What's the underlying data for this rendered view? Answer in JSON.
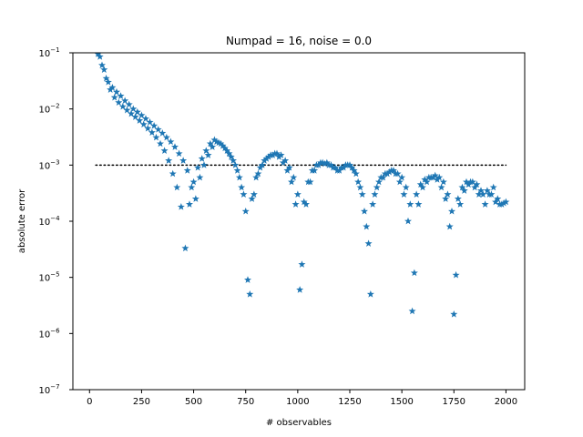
{
  "chart_data": {
    "type": "scatter",
    "title": "Numpad = 16, noise = 0.0",
    "xlabel": "# observables",
    "ylabel": "absolute error",
    "xlim": [
      -80,
      2090
    ],
    "ylim": [
      1e-07,
      0.1
    ],
    "yscale": "log",
    "grid": false,
    "x_ticks": [
      0,
      250,
      500,
      750,
      1000,
      1250,
      1500,
      1750,
      2000
    ],
    "x_tick_labels": [
      "0",
      "250",
      "500",
      "750",
      "1000",
      "1250",
      "1500",
      "1750",
      "2000"
    ],
    "y_ticks": [
      1e-07,
      1e-06,
      1e-05,
      0.0001,
      0.001,
      0.01,
      0.1
    ],
    "y_tick_labels": [
      [
        "10",
        "−7"
      ],
      [
        "10",
        "−6"
      ],
      [
        "10",
        "−5"
      ],
      [
        "10",
        "−4"
      ],
      [
        "10",
        "−3"
      ],
      [
        "10",
        "−2"
      ],
      [
        "10",
        "−1"
      ]
    ],
    "marker": "star",
    "marker_color": "#1f77b4",
    "threshold": {
      "y": 0.001,
      "x": [
        30,
        2000
      ],
      "style": "dotted",
      "color": "#000000"
    },
    "series": [
      {
        "x": [
          40,
          60,
          80,
          100,
          120,
          140,
          160,
          180,
          200,
          220,
          240,
          260,
          280,
          300,
          320,
          340,
          360,
          380,
          400,
          420,
          440,
          460,
          480,
          500,
          520,
          540,
          560,
          580,
          600,
          620,
          640,
          660,
          680,
          700,
          720,
          740,
          760,
          780,
          800,
          820,
          840,
          860,
          880,
          900,
          920,
          940,
          960,
          980,
          1000,
          1020,
          1040,
          1060,
          1080,
          1100,
          1120,
          1140,
          1160,
          1180,
          1200,
          1220,
          1240,
          1260,
          1280,
          1300,
          1320,
          1340,
          1360,
          1380,
          1400,
          1420,
          1440,
          1460,
          1480,
          1500,
          1520,
          1540,
          1560,
          1580,
          1600,
          1620,
          1640,
          1660,
          1680,
          1700,
          1720,
          1740,
          1760,
          1780,
          1800,
          1820,
          1840,
          1860,
          1880,
          1900,
          1920,
          1940,
          1960,
          1980,
          2000
        ],
        "y": [
          0.095,
          0.06,
          0.035,
          0.022,
          0.016,
          0.013,
          0.011,
          0.0095,
          0.0082,
          0.0072,
          0.0062,
          0.0053,
          0.0045,
          0.0038,
          0.0031,
          0.0024,
          0.0018,
          0.0012,
          0.0007,
          0.0004,
          0.00018,
          3.3e-05,
          0.0002,
          0.0005,
          0.0009,
          0.0013,
          0.0018,
          0.0024,
          0.0028,
          0.0025,
          0.0022,
          0.0018,
          0.0014,
          0.001,
          0.0006,
          0.0003,
          9e-06,
          0.00025,
          0.0006,
          0.0009,
          0.0012,
          0.0014,
          0.0015,
          0.0016,
          0.0015,
          0.0012,
          0.0009,
          0.0006,
          0.0003,
          1.7e-05,
          0.0002,
          0.0005,
          0.0008,
          0.001,
          0.0011,
          0.0011,
          0.001,
          0.0009,
          0.0008,
          0.0009,
          0.001,
          0.0009,
          0.0007,
          0.0004,
          0.00015,
          4e-05,
          0.0002,
          0.0004,
          0.0006,
          0.0007,
          0.00075,
          0.0008,
          0.0007,
          0.0006,
          0.0004,
          0.0002,
          1.2e-05,
          0.0002,
          0.0004,
          0.0005,
          0.0006,
          0.00065,
          0.0006,
          0.0005,
          0.0003,
          0.00015,
          1.1e-05,
          0.0002,
          0.00035,
          0.00045,
          0.0005,
          0.00045,
          0.00035,
          0.0002,
          0.0003,
          0.0004,
          0.00025,
          0.0002,
          0.00022
        ]
      },
      {
        "x": [
          50,
          70,
          90,
          110,
          130,
          150,
          170,
          190,
          210,
          230,
          250,
          270,
          290,
          310,
          330,
          350,
          370,
          390,
          410,
          430,
          450,
          470,
          490,
          510,
          530,
          550,
          570,
          590,
          610,
          630,
          650,
          670,
          690,
          710,
          730,
          750,
          770,
          790,
          810,
          830,
          850,
          870,
          890,
          910,
          930,
          950,
          970,
          990,
          1010,
          1030,
          1050,
          1070,
          1090,
          1110,
          1130,
          1150,
          1170,
          1190,
          1210,
          1230,
          1250,
          1270,
          1290,
          1310,
          1330,
          1350,
          1370,
          1390,
          1410,
          1430,
          1450,
          1470,
          1490,
          1510,
          1530,
          1550,
          1570,
          1590,
          1610,
          1630,
          1650,
          1670,
          1690,
          1710,
          1730,
          1750,
          1770,
          1790,
          1810,
          1830,
          1850,
          1870,
          1890,
          1910,
          1930,
          1950,
          1970,
          1990
        ],
        "y": [
          0.085,
          0.05,
          0.03,
          0.024,
          0.02,
          0.017,
          0.014,
          0.012,
          0.01,
          0.0088,
          0.0077,
          0.0067,
          0.0058,
          0.005,
          0.0043,
          0.0037,
          0.0031,
          0.0026,
          0.0021,
          0.0016,
          0.0012,
          0.0008,
          0.0004,
          0.00025,
          0.0006,
          0.001,
          0.0015,
          0.0021,
          0.0026,
          0.0024,
          0.002,
          0.0016,
          0.0012,
          0.0008,
          0.0004,
          0.00015,
          5e-06,
          0.0003,
          0.0007,
          0.001,
          0.0013,
          0.0015,
          0.0016,
          0.0014,
          0.0011,
          0.0008,
          0.0005,
          0.0002,
          6e-06,
          0.00022,
          0.0005,
          0.0008,
          0.001,
          0.0011,
          0.00105,
          0.001,
          0.0009,
          0.0008,
          0.0009,
          0.001,
          0.001,
          0.0008,
          0.0005,
          0.0003,
          8e-05,
          5e-06,
          0.0003,
          0.0005,
          0.0006,
          0.0007,
          0.0008,
          0.0007,
          0.0005,
          0.0003,
          0.0001,
          2.5e-06,
          0.0003,
          0.00045,
          0.00055,
          0.0006,
          0.0006,
          0.00055,
          0.0004,
          0.00025,
          8e-05,
          2.2e-06,
          0.00025,
          0.0004,
          0.0005,
          0.0005,
          0.0004,
          0.0003,
          0.0003,
          0.00035,
          0.0003,
          0.00022,
          0.0002,
          0.00021
        ]
      }
    ]
  }
}
